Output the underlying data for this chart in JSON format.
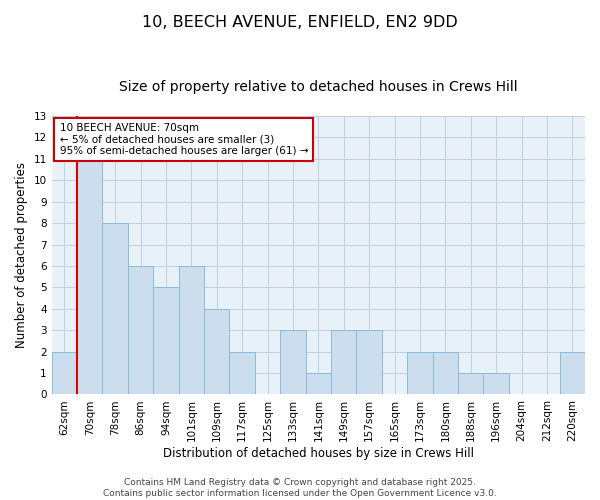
{
  "title_line1": "10, BEECH AVENUE, ENFIELD, EN2 9DD",
  "title_line2": "Size of property relative to detached houses in Crews Hill",
  "xlabel": "Distribution of detached houses by size in Crews Hill",
  "ylabel": "Number of detached properties",
  "categories": [
    "62sqm",
    "70sqm",
    "78sqm",
    "86sqm",
    "94sqm",
    "101sqm",
    "109sqm",
    "117sqm",
    "125sqm",
    "133sqm",
    "141sqm",
    "149sqm",
    "157sqm",
    "165sqm",
    "173sqm",
    "180sqm",
    "188sqm",
    "196sqm",
    "204sqm",
    "212sqm",
    "220sqm"
  ],
  "values": [
    2,
    11,
    8,
    6,
    5,
    6,
    4,
    2,
    0,
    3,
    1,
    3,
    3,
    0,
    2,
    2,
    1,
    1,
    0,
    0,
    2
  ],
  "bar_color": "#ccdded",
  "bar_edge_color": "#88bbdd",
  "highlight_index": 1,
  "highlight_color": "#dd0000",
  "ylim": [
    0,
    13
  ],
  "yticks": [
    0,
    1,
    2,
    3,
    4,
    5,
    6,
    7,
    8,
    9,
    10,
    11,
    12,
    13
  ],
  "annotation_box_text": "10 BEECH AVENUE: 70sqm\n← 5% of detached houses are smaller (3)\n95% of semi-detached houses are larger (61) →",
  "footer_text": "Contains HM Land Registry data © Crown copyright and database right 2025.\nContains public sector information licensed under the Open Government Licence v3.0.",
  "background_color": "#e8f0f8",
  "grid_color": "#c0d0e0",
  "title_fontsize": 11.5,
  "subtitle_fontsize": 10,
  "label_fontsize": 8.5,
  "tick_fontsize": 7.5,
  "ann_fontsize": 7.5,
  "footer_fontsize": 6.5
}
